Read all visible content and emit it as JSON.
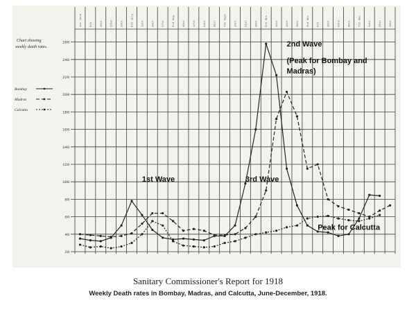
{
  "chart_data": {
    "type": "line",
    "title": "Chart showing weekly death rates.",
    "x": [
      "1st June",
      "8th",
      "15th",
      "22nd",
      "29th",
      "6th July",
      "13th",
      "20th",
      "27th",
      "3rd Aug",
      "10th",
      "17th",
      "24th",
      "31st",
      "7th Sept",
      "14th",
      "21st",
      "28th",
      "5th Oct",
      "12th",
      "19th",
      "26th",
      "2nd Nov",
      "9th",
      "16th",
      "23rd",
      "30th",
      "7th Dec",
      "14th",
      "21st",
      "28th"
    ],
    "ylim": [
      20,
      270
    ],
    "yticks": [
      20,
      40,
      60,
      80,
      100,
      120,
      140,
      160,
      180,
      200,
      220,
      240,
      260
    ],
    "grid": true,
    "legend": "left",
    "series": [
      {
        "name": "Bombay",
        "style": "solid",
        "values": [
          35,
          33,
          32,
          36,
          50,
          78,
          62,
          45,
          36,
          34,
          35,
          34,
          33,
          38,
          38,
          50,
          98,
          160,
          258,
          222,
          115,
          73,
          50,
          43,
          42,
          38,
          40,
          58,
          85,
          84,
          null
        ]
      },
      {
        "name": "Madras",
        "style": "dashed",
        "values": [
          40,
          39,
          38,
          37,
          38,
          41,
          52,
          64,
          64,
          55,
          44,
          46,
          44,
          39,
          39,
          40,
          47,
          60,
          90,
          172,
          203,
          175,
          115,
          120,
          80,
          72,
          68,
          64,
          60,
          67,
          73
        ]
      },
      {
        "name": "Calcutta",
        "style": "dotted",
        "values": [
          28,
          25,
          26,
          24,
          26,
          30,
          40,
          55,
          50,
          32,
          27,
          26,
          25,
          26,
          30,
          32,
          36,
          40,
          42,
          44,
          48,
          50,
          58,
          60,
          61,
          58,
          56,
          55,
          58,
          62,
          null
        ]
      }
    ],
    "annotations": [
      {
        "text": "1st Wave",
        "x": "13th",
        "y": 100
      },
      {
        "text": "2nd Wave",
        "x": "19th",
        "y": 255
      },
      {
        "text": "(Peak for Bombay and",
        "x": "19th",
        "y": 236
      },
      {
        "text": "Madras)",
        "x": "19th",
        "y": 224
      },
      {
        "text": "3rd Wave",
        "x": "21st",
        "y": 100
      },
      {
        "text": "Peak for Calcutta",
        "x": "9th",
        "y": 45
      }
    ]
  },
  "caption": {
    "main": "Sanitary Commissioner's Report for 1918",
    "sub": "Weekly Death rates in Bombay, Madras, and Calcutta, June-December, 1918."
  }
}
